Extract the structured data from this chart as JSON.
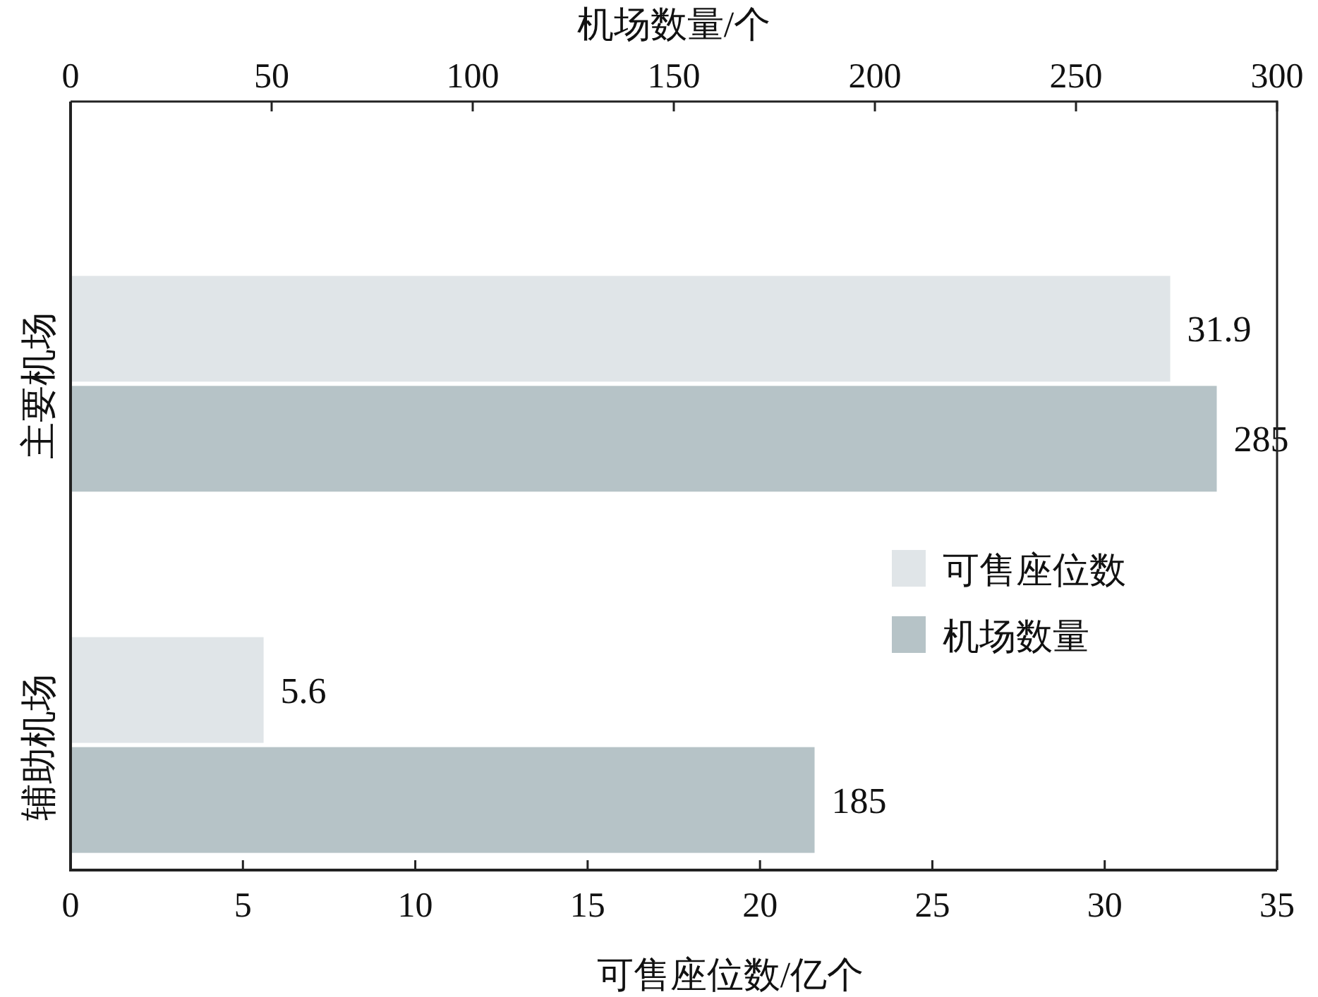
{
  "chart_data": {
    "type": "bar",
    "orientation": "horizontal",
    "categories": [
      "主要机场",
      "辅助机场"
    ],
    "series": [
      {
        "name": "可售座位数",
        "color": "#e0e5e8",
        "values": [
          31.9,
          5.6
        ]
      },
      {
        "name": "机场数量",
        "color": "#b6c3c7",
        "values": [
          285,
          185
        ],
        "axis": "x2"
      }
    ],
    "xlabel": "可售座位数/亿个",
    "x2label": "机场数量/个",
    "xlim": [
      0,
      35
    ],
    "xticks": [
      0,
      5,
      10,
      15,
      20,
      25,
      30,
      35
    ],
    "x2lim": [
      0,
      300
    ],
    "x2ticks": [
      0,
      50,
      100,
      150,
      200,
      250,
      300
    ],
    "data_labels": true,
    "legend": "right"
  }
}
